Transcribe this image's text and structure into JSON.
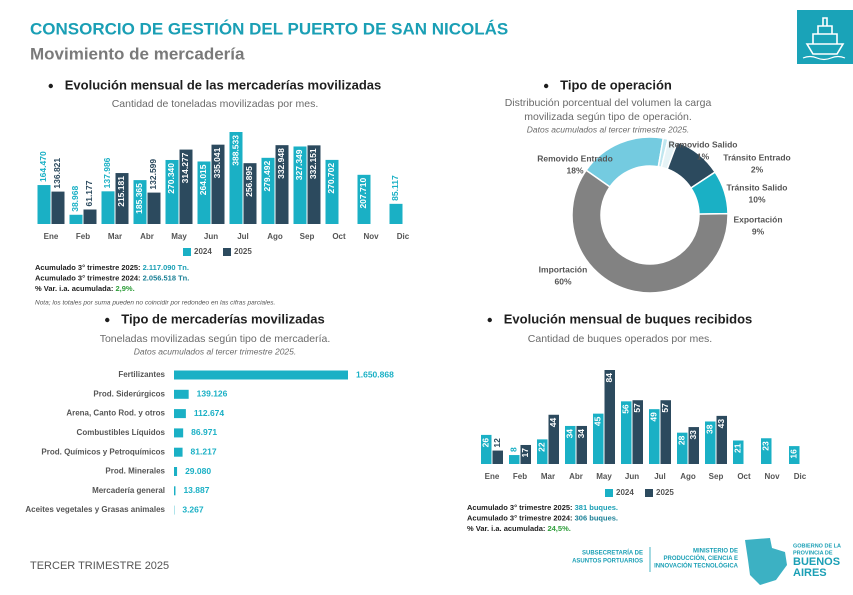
{
  "header": {
    "title": "CONSORCIO DE GESTIÓN DEL PUERTO DE SAN NICOLÁS",
    "subtitle": "Movimiento de mercadería"
  },
  "chart_data": [
    {
      "type": "bar",
      "title": "Evolución mensual de las mercaderías movilizadas",
      "subtitle": [
        "Cantidad de toneladas movilizadas por mes."
      ],
      "categories": [
        "Ene",
        "Feb",
        "Mar",
        "Abr",
        "May",
        "Jun",
        "Jul",
        "Ago",
        "Sep",
        "Oct",
        "Nov",
        "Dic"
      ],
      "series": [
        {
          "name": "2024",
          "color": "#1ab0c5",
          "values": [
            164470,
            38968,
            137986,
            185365,
            270340,
            264015,
            388533,
            279492,
            327349,
            270702,
            207710,
            85117
          ],
          "value_labels": [
            "164.470",
            "38.968",
            "137.986",
            "185.365",
            "270.340",
            "264.015",
            "388.533",
            "279.492",
            "327.349",
            "270.702",
            "207.710",
            "85.117"
          ]
        },
        {
          "name": "2025",
          "color": "#2c4a5e",
          "values": [
            136821,
            61177,
            215181,
            132599,
            314277,
            335041,
            256895,
            332948,
            332151,
            null,
            null,
            null
          ],
          "value_labels": [
            "136.821",
            "61.177",
            "215.181",
            "132.599",
            "314.277",
            "335.041",
            "256.895",
            "332.948",
            "332.151",
            null,
            null,
            null
          ]
        }
      ],
      "notes": [
        {
          "label": "Acumulado 3° trimestre 2025:",
          "value": "2.117.090 Tn.",
          "color": "#1a9fb5"
        },
        {
          "label": "Acumulado 3° trimestre 2024:",
          "value": "2.056.518 Tn.",
          "color": "#1a7f95"
        },
        {
          "label": "% Var. i.a. acumulada:",
          "value": "2,9%.",
          "color": "#2e9e3a"
        }
      ],
      "footnote": "Nota; los totales por suma pueden no coincidir por redondeo en las cifras parciales."
    },
    {
      "type": "pie",
      "title": "Tipo de operación",
      "subtitle": [
        "Distribución porcentual del volumen la carga",
        "movilizada según tipo de operación."
      ],
      "note": "Datos acumulados al tercer trimestre 2025.",
      "categories": [
        "Removido Entrado",
        "Removido Salido",
        "Tránsito Entrado",
        "Tránsito Salido",
        "Exportación",
        "Importación"
      ],
      "values": [
        18,
        1,
        2,
        10,
        9,
        60
      ],
      "value_labels": [
        "18%",
        "1%",
        "2%",
        "10%",
        "9%",
        "60%"
      ],
      "colors": [
        "#74cbe0",
        "#bfe6ef",
        "#e6f3f6",
        "#2c4a5e",
        "#1ab0c5",
        "#828282"
      ]
    },
    {
      "type": "barh",
      "title": "Tipo de mercaderías movilizadas",
      "subtitle": [
        "Toneladas movilizadas según tipo de mercadería."
      ],
      "note": "Datos acumulados al tercer trimestre 2025.",
      "categories": [
        "Fertilizantes",
        "Prod. Siderúrgicos",
        "Arena, Canto Rod. y otros",
        "Combustibles Líquidos",
        "Prod. Químicos y Petroquímicos",
        "Prod. Minerales",
        "Mercadería general",
        "Aceites vegetales y Grasas animales"
      ],
      "values": [
        1650868,
        139126,
        112674,
        86971,
        81217,
        29080,
        13887,
        3267
      ],
      "value_labels": [
        "1.650.868",
        "139.126",
        "112.674",
        "86.971",
        "81.217",
        "29.080",
        "13.887",
        "3.267"
      ],
      "color": "#1ab0c5"
    },
    {
      "type": "bar",
      "title": "Evolución mensual de buques recibidos",
      "subtitle": [
        "Cantidad de buques operados por mes."
      ],
      "categories": [
        "Ene",
        "Feb",
        "Mar",
        "Abr",
        "May",
        "Jun",
        "Jul",
        "Ago",
        "Sep",
        "Oct",
        "Nov",
        "Dic"
      ],
      "series": [
        {
          "name": "2024",
          "color": "#1ab0c5",
          "values": [
            26,
            8,
            22,
            34,
            45,
            56,
            49,
            28,
            38,
            21,
            23,
            16
          ]
        },
        {
          "name": "2025",
          "color": "#2c4a5e",
          "values": [
            12,
            17,
            44,
            34,
            84,
            57,
            57,
            33,
            43,
            null,
            null,
            null
          ]
        }
      ],
      "notes": [
        {
          "label": "Acumulado 3° trimestre 2025:",
          "value": "381 buques.",
          "color": "#1a9fb5"
        },
        {
          "label": "Acumulado 3° trimestre 2024:",
          "value": "306 buques.",
          "color": "#1a7f95"
        },
        {
          "label": "% Var. i.a. acumulada:",
          "value": "24,5%.",
          "color": "#2e9e3a"
        }
      ]
    }
  ],
  "footer": "TERCER TRIMESTRE 2025",
  "logos": {
    "subsecretaria": [
      "SUBSECRETARÍA DE",
      "ASUNTOS PORTUARIOS"
    ],
    "ministerio": [
      "MINISTERIO DE",
      "PRODUCCIÓN, CIENCIA E",
      "INNOVACIÓN TECNOLÓGICA"
    ],
    "gobierno": [
      "GOBIERNO DE LA",
      "PROVINCIA DE"
    ],
    "provincia": [
      "BUENOS",
      "AIRES"
    ]
  }
}
